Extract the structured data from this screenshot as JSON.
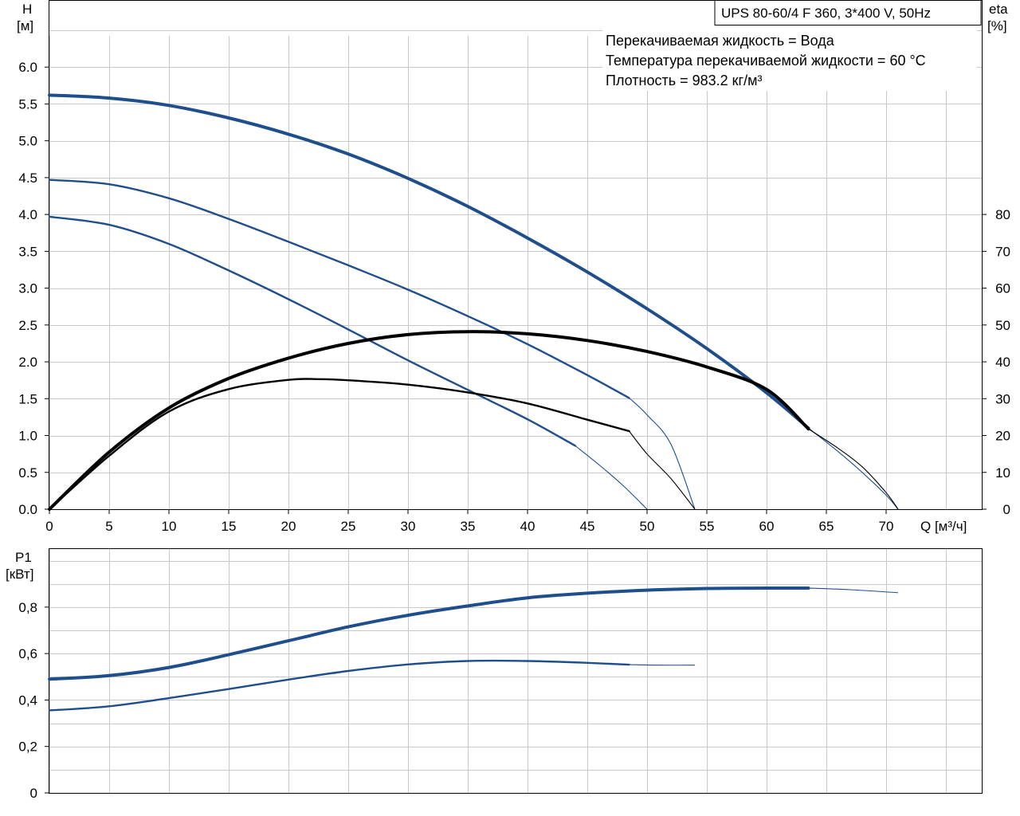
{
  "title": "UPS 80-60/4 F 360, 3*400 V, 50Hz",
  "info_lines": [
    "Перекачиваемая жидкость = Вода",
    "Температура перекачиваемой жидкости = 60 °C",
    "Плотность = 983.2 кг/м³"
  ],
  "colors": {
    "head_curves": "#1f4e8c",
    "efficiency_curves": "#000000",
    "grid": "#c8c8c8",
    "frame": "#000000"
  },
  "chart_data": [
    {
      "type": "line",
      "panel": "head_efficiency",
      "xlabel": "Q [м³/ч]",
      "ylabel_left": [
        "H",
        "[м]"
      ],
      "ylabel_right": [
        "eta",
        "[%]"
      ],
      "xlim": [
        0,
        78
      ],
      "ylim_left": [
        0,
        6.9
      ],
      "ylim_right": [
        0,
        138
      ],
      "x_ticks": [
        0,
        5,
        10,
        15,
        20,
        25,
        30,
        35,
        40,
        45,
        50,
        55,
        60,
        65,
        70
      ],
      "y_ticks_left": [
        "0.0",
        "0.5",
        "1.0",
        "1.5",
        "2.0",
        "2.5",
        "3.0",
        "3.5",
        "4.0",
        "4.5",
        "5.0",
        "5.5",
        "6.0"
      ],
      "y_ticks_right": [
        "0",
        "10",
        "20",
        "30",
        "40",
        "50",
        "60",
        "70",
        "80"
      ],
      "grid": true,
      "series": [
        {
          "kind": "head",
          "axis": "left",
          "weight": "bold",
          "points": [
            [
              0,
              5.62
            ],
            [
              5,
              5.58
            ],
            [
              10,
              5.48
            ],
            [
              15,
              5.31
            ],
            [
              20,
              5.09
            ],
            [
              25,
              4.82
            ],
            [
              30,
              4.49
            ],
            [
              35,
              4.11
            ],
            [
              40,
              3.68
            ],
            [
              45,
              3.22
            ],
            [
              50,
              2.72
            ],
            [
              55,
              2.18
            ],
            [
              60,
              1.58
            ],
            [
              63.5,
              1.1
            ]
          ],
          "extension": [
            [
              63.5,
              1.1
            ],
            [
              66,
              0.78
            ],
            [
              68,
              0.5
            ],
            [
              70,
              0.19
            ],
            [
              71,
              0.0
            ]
          ]
        },
        {
          "kind": "head",
          "axis": "left",
          "weight": "normal",
          "points": [
            [
              0,
              4.47
            ],
            [
              5,
              4.41
            ],
            [
              10,
              4.22
            ],
            [
              15,
              3.94
            ],
            [
              20,
              3.63
            ],
            [
              25,
              3.31
            ],
            [
              30,
              2.98
            ],
            [
              35,
              2.62
            ],
            [
              40,
              2.24
            ],
            [
              45,
              1.82
            ],
            [
              48.5,
              1.51
            ]
          ],
          "extension": [
            [
              48.5,
              1.51
            ],
            [
              50,
              1.28
            ],
            [
              52,
              0.88
            ],
            [
              54,
              0.0
            ]
          ]
        },
        {
          "kind": "head",
          "axis": "left",
          "weight": "normal",
          "points": [
            [
              0,
              3.97
            ],
            [
              5,
              3.86
            ],
            [
              10,
              3.6
            ],
            [
              15,
              3.24
            ],
            [
              20,
              2.85
            ],
            [
              25,
              2.44
            ],
            [
              30,
              2.02
            ],
            [
              35,
              1.62
            ],
            [
              40,
              1.22
            ],
            [
              44,
              0.86
            ]
          ],
          "extension": [
            [
              44,
              0.86
            ],
            [
              46,
              0.6
            ],
            [
              48,
              0.32
            ],
            [
              50,
              0.0
            ]
          ]
        },
        {
          "kind": "efficiency",
          "axis": "right",
          "weight": "bold",
          "points": [
            [
              0,
              0
            ],
            [
              5,
              15.5
            ],
            [
              10,
              27.5
            ],
            [
              15,
              35.5
            ],
            [
              20,
              41
            ],
            [
              25,
              45
            ],
            [
              30,
              47.4
            ],
            [
              35,
              48.2
            ],
            [
              40,
              47.6
            ],
            [
              45,
              45.8
            ],
            [
              50,
              42.8
            ],
            [
              55,
              38.6
            ],
            [
              60,
              32.5
            ],
            [
              63.5,
              21.8
            ]
          ],
          "extension": [
            [
              63.5,
              21.8
            ],
            [
              66,
              16.5
            ],
            [
              68,
              11.5
            ],
            [
              70,
              4.5
            ],
            [
              71,
              0.0
            ]
          ]
        },
        {
          "kind": "efficiency",
          "axis": "right",
          "weight": "normal",
          "points": [
            [
              0,
              0
            ],
            [
              5,
              14.5
            ],
            [
              10,
              26.5
            ],
            [
              15,
              32.6
            ],
            [
              20,
              35.1
            ],
            [
              22.5,
              35.3
            ],
            [
              25,
              35
            ],
            [
              30,
              33.8
            ],
            [
              35,
              31.7
            ],
            [
              40,
              28.7
            ],
            [
              45,
              24.3
            ],
            [
              48.5,
              21.2
            ]
          ],
          "extension": [
            [
              48.5,
              21.2
            ],
            [
              50,
              15.0
            ],
            [
              52,
              8.3
            ],
            [
              54,
              0.0
            ]
          ]
        }
      ]
    },
    {
      "type": "line",
      "panel": "power",
      "ylabel": [
        "P1",
        "[кВт]"
      ],
      "xlim": [
        0,
        78
      ],
      "ylim": [
        0,
        1.05
      ],
      "y_ticks": [
        "0",
        "0,2",
        "0,4",
        "0,6",
        "0,8"
      ],
      "grid": true,
      "series": [
        {
          "kind": "power",
          "weight": "bold",
          "points": [
            [
              0,
              0.49
            ],
            [
              5,
              0.505
            ],
            [
              10,
              0.54
            ],
            [
              15,
              0.595
            ],
            [
              20,
              0.655
            ],
            [
              25,
              0.715
            ],
            [
              30,
              0.765
            ],
            [
              35,
              0.805
            ],
            [
              40,
              0.84
            ],
            [
              45,
              0.86
            ],
            [
              50,
              0.873
            ],
            [
              55,
              0.88
            ],
            [
              60,
              0.882
            ],
            [
              63.5,
              0.882
            ]
          ],
          "extension": [
            [
              63.5,
              0.882
            ],
            [
              67,
              0.875
            ],
            [
              71,
              0.862
            ]
          ]
        },
        {
          "kind": "power",
          "weight": "normal",
          "points": [
            [
              0,
              0.355
            ],
            [
              5,
              0.373
            ],
            [
              10,
              0.408
            ],
            [
              15,
              0.447
            ],
            [
              20,
              0.488
            ],
            [
              25,
              0.525
            ],
            [
              30,
              0.553
            ],
            [
              35,
              0.568
            ],
            [
              40,
              0.568
            ],
            [
              45,
              0.56
            ],
            [
              48.5,
              0.552
            ]
          ],
          "extension": [
            [
              48.5,
              0.552
            ],
            [
              51,
              0.55
            ],
            [
              54,
              0.55
            ]
          ]
        }
      ]
    }
  ]
}
